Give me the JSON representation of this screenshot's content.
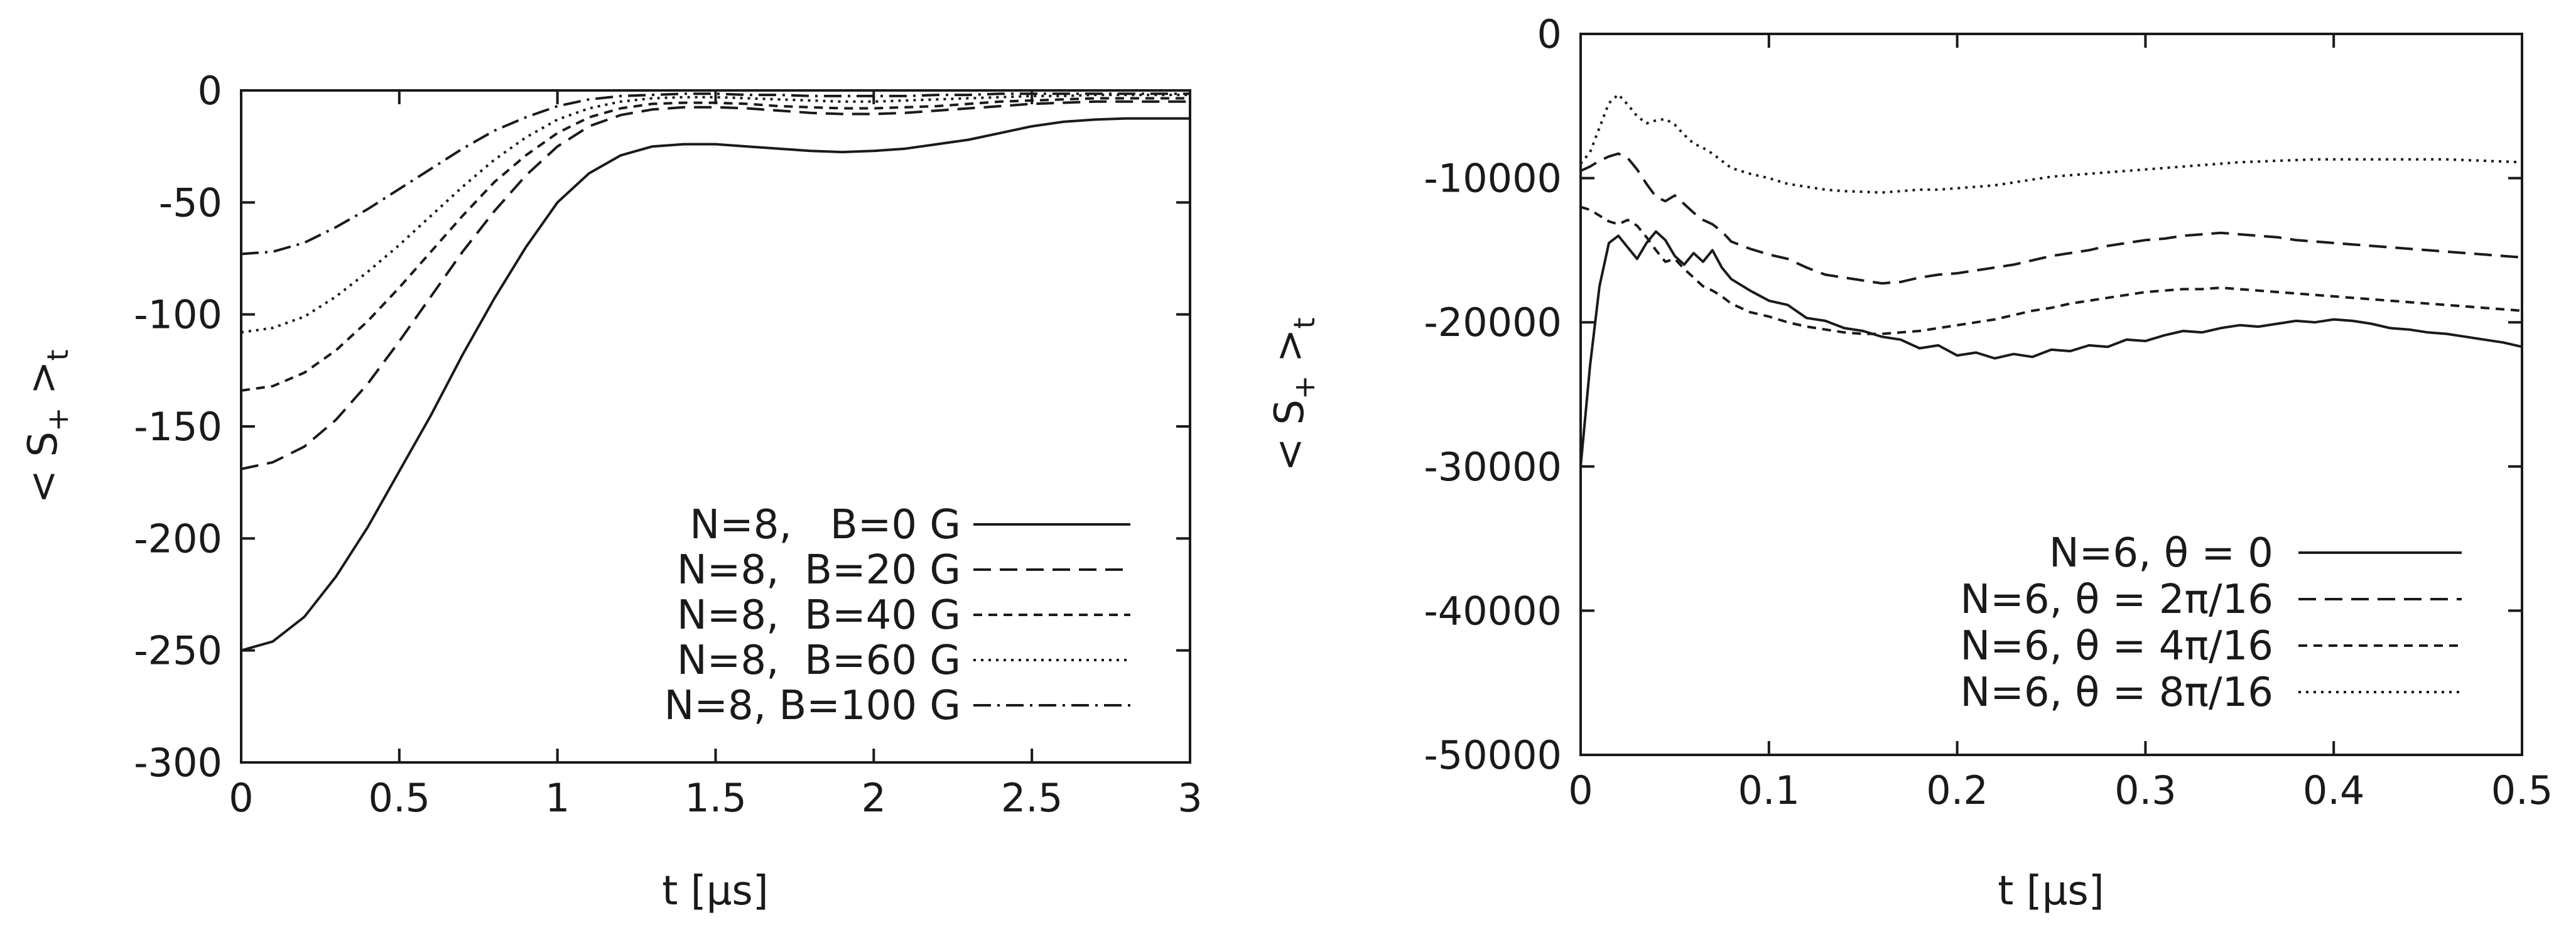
{
  "chart_data": [
    {
      "type": "line",
      "xlabel": "t [µs]",
      "ylabel": "< S+ >t",
      "xlim": [
        0,
        3
      ],
      "ylim": [
        -300,
        0
      ],
      "xticks": [
        "0",
        "0.5",
        "1",
        "1.5",
        "2",
        "2.5",
        "3"
      ],
      "yticks": [
        "0",
        "-50",
        "-100",
        "-150",
        "-200",
        "-250",
        "-300"
      ],
      "legend_position": "bottom-right",
      "series": [
        {
          "name": "N=8,   B=0 G",
          "dash": "",
          "x": [
            0,
            0.1,
            0.2,
            0.3,
            0.4,
            0.5,
            0.6,
            0.7,
            0.8,
            0.9,
            1.0,
            1.1,
            1.2,
            1.3,
            1.4,
            1.5,
            1.6,
            1.7,
            1.8,
            1.9,
            2.0,
            2.1,
            2.2,
            2.3,
            2.4,
            2.5,
            2.6,
            2.7,
            2.8,
            2.9,
            3.0
          ],
          "y": [
            -250,
            -246,
            -235,
            -217,
            -195,
            -170,
            -145,
            -118,
            -93,
            -70,
            -50,
            -37,
            -29,
            -25,
            -24,
            -24,
            -25,
            -26,
            -27,
            -27.5,
            -27,
            -26,
            -24,
            -22,
            -19,
            -16,
            -14,
            -13,
            -12.5,
            -12.5,
            -12.5
          ]
        },
        {
          "name": "N=8,  B=20 G",
          "dash": "28 14",
          "x": [
            0,
            0.1,
            0.2,
            0.3,
            0.4,
            0.5,
            0.6,
            0.7,
            0.8,
            0.9,
            1.0,
            1.1,
            1.2,
            1.3,
            1.4,
            1.5,
            1.6,
            1.7,
            1.8,
            1.9,
            2.0,
            2.1,
            2.2,
            2.3,
            2.4,
            2.5,
            2.6,
            2.7,
            2.8,
            2.9,
            3.0
          ],
          "y": [
            -169,
            -166,
            -159,
            -147,
            -131,
            -112,
            -92,
            -72,
            -54,
            -38,
            -25,
            -16,
            -11,
            -8.5,
            -7.5,
            -7.5,
            -8,
            -9,
            -10,
            -10.5,
            -10.5,
            -10,
            -9,
            -8,
            -7,
            -6,
            -5.5,
            -5,
            -5,
            -5,
            -5
          ]
        },
        {
          "name": "N=8,  B=40 G",
          "dash": "14 10",
          "x": [
            0,
            0.1,
            0.2,
            0.3,
            0.4,
            0.5,
            0.6,
            0.7,
            0.8,
            0.9,
            1.0,
            1.1,
            1.2,
            1.3,
            1.4,
            1.5,
            1.6,
            1.7,
            1.8,
            1.9,
            2.0,
            2.1,
            2.2,
            2.3,
            2.4,
            2.5,
            2.6,
            2.7,
            2.8,
            2.9,
            3.0
          ],
          "y": [
            -134,
            -132,
            -126,
            -116,
            -103,
            -88,
            -72,
            -56,
            -41,
            -29,
            -19,
            -12,
            -8,
            -6,
            -5.5,
            -5.5,
            -6,
            -7,
            -7.5,
            -8,
            -8,
            -7.5,
            -7,
            -6,
            -5,
            -4.5,
            -4,
            -3.5,
            -3.5,
            -3.5,
            -3.5
          ]
        },
        {
          "name": "N=8,  B=60 G",
          "dash": "4 8",
          "x": [
            0,
            0.1,
            0.2,
            0.3,
            0.4,
            0.5,
            0.6,
            0.7,
            0.8,
            0.9,
            1.0,
            1.1,
            1.2,
            1.3,
            1.4,
            1.5,
            1.6,
            1.7,
            1.8,
            1.9,
            2.0,
            2.1,
            2.2,
            2.3,
            2.4,
            2.5,
            2.6,
            2.7,
            2.8,
            2.9,
            3.0
          ],
          "y": [
            -108,
            -106,
            -101,
            -92,
            -81,
            -69,
            -56,
            -43,
            -31,
            -21,
            -13,
            -8,
            -5,
            -3.5,
            -3,
            -3,
            -3.5,
            -4,
            -4.5,
            -5,
            -5,
            -4.5,
            -4,
            -3.5,
            -3,
            -2.5,
            -2.5,
            -2,
            -2,
            -2,
            -2
          ]
        },
        {
          "name": "N=8, B=100 G",
          "dash": "28 10 4 10",
          "x": [
            0,
            0.1,
            0.2,
            0.3,
            0.4,
            0.5,
            0.6,
            0.7,
            0.8,
            0.9,
            1.0,
            1.1,
            1.2,
            1.3,
            1.4,
            1.5,
            1.6,
            1.7,
            1.8,
            1.9,
            2.0,
            2.1,
            2.2,
            2.3,
            2.4,
            2.5,
            2.6,
            2.7,
            2.8,
            2.9,
            3.0
          ],
          "y": [
            -73,
            -72,
            -68,
            -61,
            -53,
            -44,
            -35,
            -26,
            -18,
            -12,
            -7,
            -4,
            -2.5,
            -2,
            -1.5,
            -1.5,
            -2,
            -2,
            -2.5,
            -2.5,
            -2.5,
            -2.5,
            -2,
            -2,
            -1.5,
            -1.5,
            -1.5,
            -1.5,
            -1.5,
            -1.5,
            -1.5
          ]
        }
      ]
    },
    {
      "type": "line",
      "xlabel": "t [µs]",
      "ylabel": "< S+ >t",
      "xlim": [
        0,
        0.5
      ],
      "ylim": [
        -50000,
        0
      ],
      "xticks": [
        "0",
        "0.1",
        "0.2",
        "0.3",
        "0.4",
        "0.5"
      ],
      "yticks": [
        "0",
        "-10000",
        "-20000",
        "-30000",
        "-40000",
        "-50000"
      ],
      "legend_position": "bottom-right",
      "series": [
        {
          "name": "N=6, θ = 0",
          "dash": "",
          "x": [
            0,
            0.005,
            0.01,
            0.015,
            0.02,
            0.025,
            0.03,
            0.035,
            0.04,
            0.045,
            0.05,
            0.055,
            0.06,
            0.065,
            0.07,
            0.075,
            0.08,
            0.09,
            0.1,
            0.11,
            0.12,
            0.13,
            0.14,
            0.15,
            0.16,
            0.17,
            0.18,
            0.19,
            0.2,
            0.21,
            0.22,
            0.23,
            0.24,
            0.25,
            0.26,
            0.27,
            0.28,
            0.29,
            0.3,
            0.31,
            0.32,
            0.33,
            0.34,
            0.35,
            0.36,
            0.37,
            0.38,
            0.39,
            0.4,
            0.41,
            0.42,
            0.43,
            0.44,
            0.45,
            0.46,
            0.47,
            0.48,
            0.49,
            0.5
          ],
          "y": [
            -30000,
            -23000,
            -17500,
            -14500,
            -14000,
            -14800,
            -15600,
            -14500,
            -13700,
            -14300,
            -15400,
            -16000,
            -15200,
            -15800,
            -15000,
            -16200,
            -17000,
            -17800,
            -18500,
            -18800,
            -19700,
            -19900,
            -20400,
            -20600,
            -21000,
            -21200,
            -21800,
            -21600,
            -22300,
            -22100,
            -22500,
            -22200,
            -22400,
            -21900,
            -22000,
            -21600,
            -21700,
            -21200,
            -21300,
            -20900,
            -20600,
            -20700,
            -20400,
            -20200,
            -20300,
            -20100,
            -19900,
            -20000,
            -19800,
            -19900,
            -20100,
            -20400,
            -20500,
            -20700,
            -20800,
            -21000,
            -21200,
            -21400,
            -21700
          ]
        },
        {
          "name": "N=6, θ = 2π/16",
          "dash": "28 14",
          "x": [
            0,
            0.005,
            0.01,
            0.015,
            0.02,
            0.025,
            0.03,
            0.035,
            0.04,
            0.045,
            0.05,
            0.055,
            0.06,
            0.065,
            0.07,
            0.075,
            0.08,
            0.09,
            0.1,
            0.11,
            0.12,
            0.13,
            0.14,
            0.15,
            0.16,
            0.17,
            0.18,
            0.19,
            0.2,
            0.21,
            0.22,
            0.23,
            0.24,
            0.25,
            0.26,
            0.27,
            0.28,
            0.29,
            0.3,
            0.31,
            0.32,
            0.33,
            0.34,
            0.35,
            0.36,
            0.37,
            0.38,
            0.39,
            0.4,
            0.41,
            0.42,
            0.43,
            0.44,
            0.45,
            0.46,
            0.47,
            0.48,
            0.49,
            0.5
          ],
          "y": [
            -9500,
            -9200,
            -8800,
            -8500,
            -8300,
            -8600,
            -9400,
            -10400,
            -11300,
            -11600,
            -11200,
            -11800,
            -12400,
            -12900,
            -13200,
            -13700,
            -14400,
            -14900,
            -15300,
            -15600,
            -16200,
            -16700,
            -16900,
            -17100,
            -17300,
            -17200,
            -16900,
            -16700,
            -16600,
            -16400,
            -16200,
            -16000,
            -15700,
            -15400,
            -15200,
            -15000,
            -14700,
            -14500,
            -14300,
            -14200,
            -14000,
            -13900,
            -13800,
            -13900,
            -14000,
            -14100,
            -14300,
            -14400,
            -14500,
            -14600,
            -14700,
            -14800,
            -14900,
            -15000,
            -15100,
            -15200,
            -15300,
            -15400,
            -15500
          ]
        },
        {
          "name": "N=6, θ = 4π/16",
          "dash": "14 10",
          "x": [
            0,
            0.005,
            0.01,
            0.015,
            0.02,
            0.025,
            0.03,
            0.035,
            0.04,
            0.045,
            0.05,
            0.055,
            0.06,
            0.065,
            0.07,
            0.075,
            0.08,
            0.09,
            0.1,
            0.11,
            0.12,
            0.13,
            0.14,
            0.15,
            0.16,
            0.17,
            0.18,
            0.19,
            0.2,
            0.21,
            0.22,
            0.23,
            0.24,
            0.25,
            0.26,
            0.27,
            0.28,
            0.29,
            0.3,
            0.31,
            0.32,
            0.33,
            0.34,
            0.35,
            0.36,
            0.37,
            0.38,
            0.39,
            0.4,
            0.41,
            0.42,
            0.43,
            0.44,
            0.45,
            0.46,
            0.47,
            0.48,
            0.49,
            0.5
          ],
          "y": [
            -12000,
            -12200,
            -12600,
            -13000,
            -13200,
            -12900,
            -13300,
            -14100,
            -15000,
            -15800,
            -15600,
            -16300,
            -16900,
            -17500,
            -17800,
            -18200,
            -18700,
            -19300,
            -19600,
            -20000,
            -20300,
            -20500,
            -20700,
            -20800,
            -20800,
            -20700,
            -20600,
            -20400,
            -20200,
            -20000,
            -19800,
            -19500,
            -19200,
            -19000,
            -18700,
            -18500,
            -18300,
            -18100,
            -17900,
            -17800,
            -17700,
            -17700,
            -17600,
            -17700,
            -17800,
            -17900,
            -18000,
            -18100,
            -18200,
            -18300,
            -18400,
            -18500,
            -18600,
            -18700,
            -18800,
            -18900,
            -19000,
            -19100,
            -19200
          ]
        },
        {
          "name": "N=6, θ = 8π/16",
          "dash": "4 8",
          "x": [
            0,
            0.005,
            0.01,
            0.015,
            0.02,
            0.025,
            0.03,
            0.035,
            0.04,
            0.045,
            0.05,
            0.055,
            0.06,
            0.065,
            0.07,
            0.075,
            0.08,
            0.09,
            0.1,
            0.11,
            0.12,
            0.13,
            0.14,
            0.15,
            0.16,
            0.17,
            0.18,
            0.19,
            0.2,
            0.21,
            0.22,
            0.23,
            0.24,
            0.25,
            0.26,
            0.27,
            0.28,
            0.29,
            0.3,
            0.31,
            0.32,
            0.33,
            0.34,
            0.35,
            0.36,
            0.37,
            0.38,
            0.39,
            0.4,
            0.41,
            0.42,
            0.43,
            0.44,
            0.45,
            0.46,
            0.47,
            0.48,
            0.49,
            0.5
          ],
          "y": [
            -9000,
            -8200,
            -6500,
            -4800,
            -4200,
            -4900,
            -5700,
            -6200,
            -6000,
            -5900,
            -6300,
            -7000,
            -7600,
            -7900,
            -8300,
            -8800,
            -9300,
            -9700,
            -10000,
            -10400,
            -10600,
            -10800,
            -10900,
            -10950,
            -11000,
            -10900,
            -10800,
            -10800,
            -10700,
            -10600,
            -10500,
            -10300,
            -10100,
            -9900,
            -9800,
            -9700,
            -9600,
            -9500,
            -9400,
            -9300,
            -9200,
            -9100,
            -9000,
            -8900,
            -8850,
            -8800,
            -8750,
            -8700,
            -8700,
            -8700,
            -8700,
            -8700,
            -8700,
            -8700,
            -8700,
            -8750,
            -8800,
            -8850,
            -8900
          ]
        }
      ]
    }
  ]
}
